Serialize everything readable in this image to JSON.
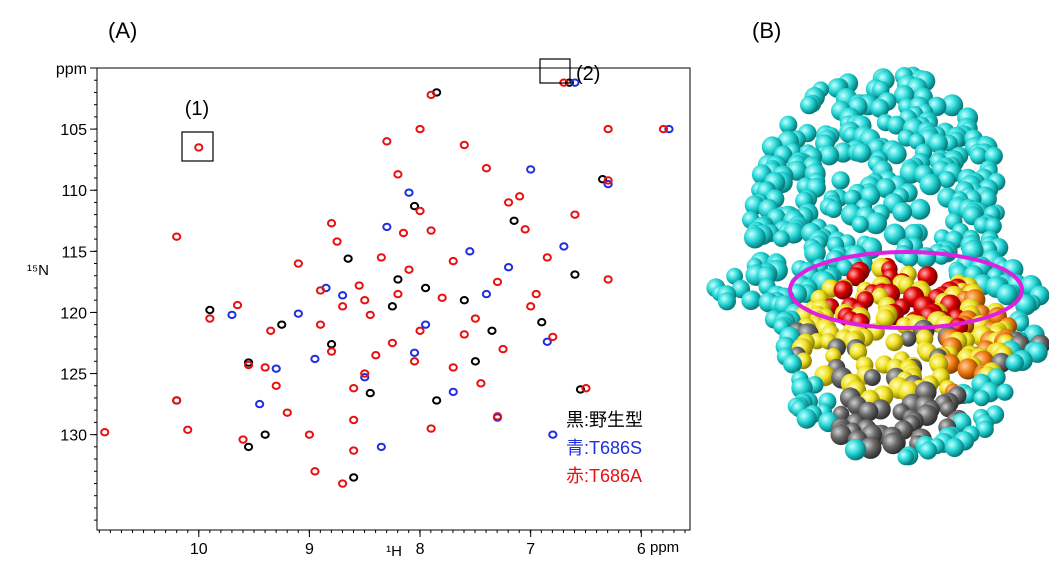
{
  "chart_data": {
    "type": "scatter",
    "panel_labels": [
      "(A)",
      "(B)"
    ],
    "annotations": [
      "(1)",
      "(2)"
    ],
    "x_label": "¹H",
    "y_label": "¹⁵N",
    "x_unit": "ppm",
    "xlim": [
      10.92,
      5.56
    ],
    "ylim": [
      100,
      137.8
    ],
    "xticks": [
      10,
      9,
      8,
      7,
      6
    ],
    "yticks": [
      {
        "value": 100,
        "label": "ppm"
      },
      105,
      110,
      115,
      120,
      125,
      130
    ],
    "series": [
      {
        "name": "黒:野生型",
        "color": "#000000",
        "x": [
          10.2,
          9.9,
          9.55,
          9.4,
          9.25,
          8.8,
          8.65,
          8.45,
          8.25,
          8.05,
          7.85,
          7.6,
          7.35,
          7.15,
          6.9,
          6.65,
          6.55,
          6.35,
          8.2,
          7.95,
          7.5,
          9.55,
          8.6,
          7.85,
          6.6
        ],
        "values": [
          127.2,
          119.8,
          124.1,
          130.0,
          121.0,
          122.6,
          115.6,
          126.6,
          119.5,
          111.3,
          102.0,
          119.0,
          121.5,
          112.5,
          120.8,
          101.2,
          126.3,
          109.1,
          117.3,
          118.0,
          124.0,
          131.0,
          133.5,
          127.2,
          116.9
        ]
      },
      {
        "name": "青:T686S",
        "color": "#1f2fe0",
        "x": [
          9.45,
          9.1,
          8.95,
          8.7,
          8.5,
          8.35,
          8.1,
          7.95,
          7.7,
          7.4,
          7.2,
          6.85,
          6.6,
          6.3,
          5.75,
          9.3,
          9.7,
          8.3,
          7.55,
          7.0,
          6.8,
          6.7,
          8.85,
          8.05,
          7.3
        ],
        "values": [
          127.5,
          120.1,
          123.8,
          118.6,
          125.3,
          131.0,
          110.2,
          121.0,
          126.5,
          118.5,
          116.3,
          122.4,
          101.2,
          109.5,
          105.0,
          124.6,
          120.2,
          113.0,
          115.0,
          108.3,
          130.0,
          114.6,
          118.0,
          123.3,
          128.6
        ]
      },
      {
        "name": "赤:T686A",
        "color": "#e81010",
        "x": [
          10.0,
          10.2,
          10.85,
          10.2,
          10.1,
          9.9,
          9.65,
          9.55,
          9.4,
          9.3,
          9.2,
          9.0,
          8.95,
          8.7,
          8.6,
          8.6,
          8.5,
          8.8,
          8.9,
          8.7,
          8.55,
          8.35,
          8.15,
          8.0,
          8.2,
          8.0,
          7.9,
          7.6,
          7.4,
          7.2,
          7.05,
          6.85,
          6.6,
          6.3,
          6.3,
          6.3,
          5.8,
          6.5,
          6.8,
          7.0,
          7.3,
          7.5,
          7.7,
          7.9,
          8.2,
          8.0,
          8.4,
          7.7,
          7.9,
          8.3,
          8.6,
          7.3,
          9.6,
          8.8,
          6.7,
          8.1,
          7.8,
          8.45,
          7.6,
          8.25,
          7.45,
          9.1,
          8.9,
          7.1,
          6.95,
          8.75,
          8.05,
          7.25,
          9.35,
          8.5
        ],
        "values": [
          106.5,
          113.8,
          129.8,
          127.2,
          129.6,
          120.5,
          119.4,
          124.3,
          124.5,
          126.0,
          128.2,
          130.0,
          133.0,
          134.0,
          131.3,
          126.2,
          125.0,
          123.2,
          121.0,
          119.5,
          117.8,
          115.5,
          113.5,
          111.7,
          108.7,
          105.0,
          102.2,
          106.3,
          108.2,
          111.0,
          113.2,
          115.5,
          112.0,
          105.0,
          109.2,
          117.3,
          105.0,
          126.2,
          122.0,
          119.5,
          117.5,
          120.5,
          124.5,
          129.5,
          118.5,
          121.5,
          123.5,
          115.8,
          113.3,
          106.0,
          128.8,
          128.5,
          130.4,
          112.7,
          101.2,
          116.5,
          118.8,
          120.2,
          121.8,
          122.5,
          125.8,
          116.0,
          118.2,
          110.5,
          118.5,
          114.2,
          124.0,
          123.0,
          121.5,
          119.0
        ]
      }
    ],
    "legend": "lower right"
  }
}
